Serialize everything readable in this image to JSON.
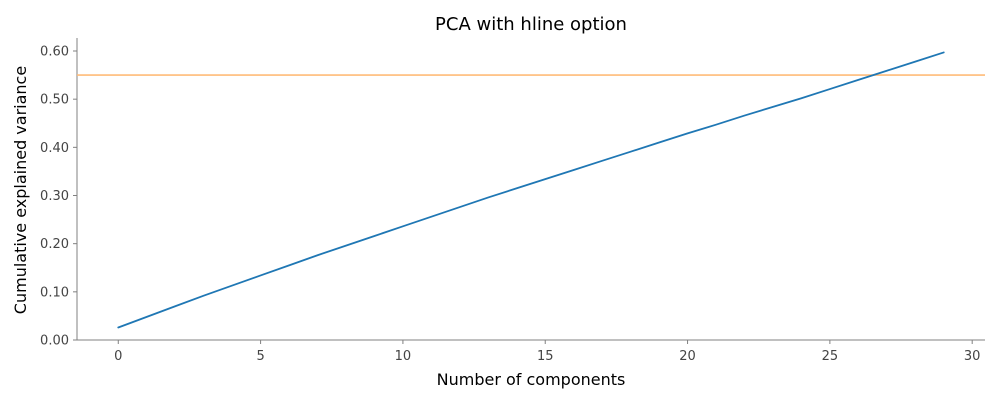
{
  "chart_data": {
    "type": "line",
    "title": "PCA with hline option",
    "xlabel": "Number of components",
    "ylabel": "Cumulative explained variance",
    "xlim": [
      -1.45,
      30.45
    ],
    "ylim": [
      0.0,
      0.627
    ],
    "xticks": [
      0,
      5,
      10,
      15,
      20,
      25,
      30
    ],
    "xtick_labels": [
      "0",
      "5",
      "10",
      "15",
      "20",
      "25",
      "30"
    ],
    "yticks": [
      0.0,
      0.1,
      0.2,
      0.3,
      0.4,
      0.5,
      0.6
    ],
    "ytick_labels": [
      "0.00",
      "0.10",
      "0.20",
      "0.30",
      "0.40",
      "0.50",
      "0.60"
    ],
    "grid": false,
    "series": [
      {
        "color": "#1f77b4",
        "x": [
          0,
          1,
          2,
          3,
          4,
          5,
          6,
          7,
          8,
          9,
          10,
          11,
          12,
          13,
          14,
          15,
          16,
          17,
          18,
          19,
          20,
          21,
          22,
          23,
          24,
          25,
          26,
          27,
          28,
          29
        ],
        "y": [
          0.026,
          0.048,
          0.07,
          0.092,
          0.113,
          0.134,
          0.155,
          0.176,
          0.196,
          0.216,
          0.236,
          0.256,
          0.276,
          0.296,
          0.315,
          0.334,
          0.353,
          0.372,
          0.391,
          0.41,
          0.429,
          0.447,
          0.466,
          0.484,
          0.502,
          0.521,
          0.54,
          0.559,
          0.578,
          0.597
        ]
      }
    ],
    "hline": {
      "y": 0.55,
      "color": "#ffbb78"
    }
  }
}
